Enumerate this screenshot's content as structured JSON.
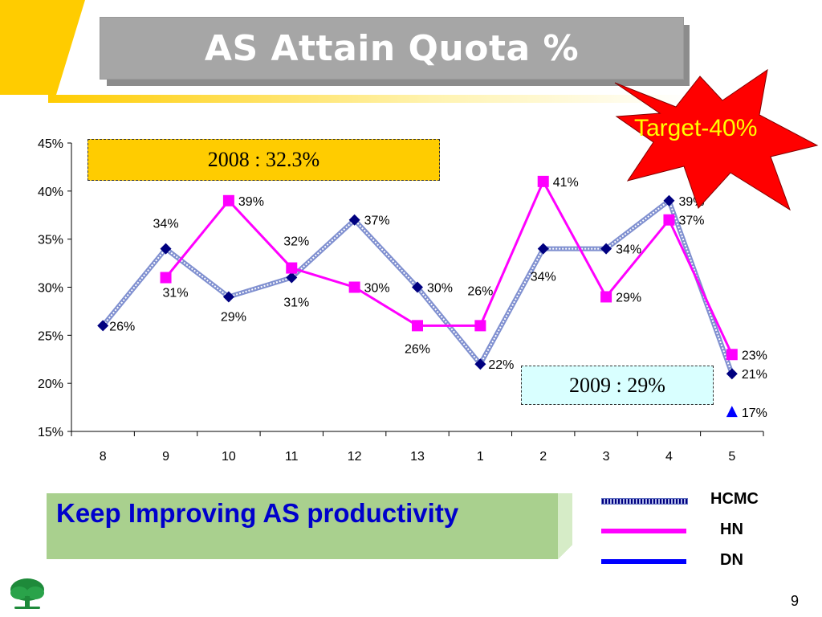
{
  "slide": {
    "title": "AS Attain Quota %",
    "page_number": "9",
    "target_label": "Target-40%",
    "banner_text": "Keep Improving AS productivity",
    "box_2008": "2008 : 32.3%",
    "box_2009": "2009 : 29%"
  },
  "colors": {
    "hcmc": "#000080",
    "hn": "#ff00ff",
    "dn": "#0000ff",
    "accent_yellow": "#ffcc00",
    "starburst": "#ff0000"
  },
  "chart_data": {
    "type": "line",
    "categories": [
      "8",
      "9",
      "10",
      "11",
      "12",
      "13",
      "1",
      "2",
      "3",
      "4",
      "5"
    ],
    "ylim": [
      0.15,
      0.45
    ],
    "yticks": [
      0.15,
      0.2,
      0.25,
      0.3,
      0.35,
      0.4,
      0.45
    ],
    "ytick_labels": [
      "15%",
      "20%",
      "25%",
      "30%",
      "35%",
      "40%",
      "45%"
    ],
    "grid": false,
    "legend_position": "bottom-right",
    "series": [
      {
        "name": "HCMC",
        "values": [
          0.26,
          0.34,
          0.29,
          0.31,
          0.37,
          0.3,
          0.22,
          0.34,
          0.34,
          0.39,
          0.21
        ],
        "labels": [
          "26%",
          "34%",
          "29%",
          "31%",
          "37%",
          "30%",
          "22%",
          "34%",
          "34%",
          "39%",
          "21%"
        ]
      },
      {
        "name": "HN",
        "values": [
          null,
          0.31,
          0.39,
          0.32,
          0.3,
          0.26,
          0.26,
          0.41,
          0.29,
          0.37,
          0.23
        ],
        "labels": [
          null,
          "31%",
          "39%",
          "32%",
          "30%",
          "26%",
          "26%",
          "41%",
          "29%",
          "37%",
          "23%"
        ]
      },
      {
        "name": "DN",
        "values": [
          null,
          null,
          null,
          null,
          null,
          null,
          null,
          null,
          null,
          null,
          0.17
        ],
        "labels": [
          null,
          null,
          null,
          null,
          null,
          null,
          null,
          null,
          null,
          null,
          "17%"
        ]
      }
    ]
  }
}
